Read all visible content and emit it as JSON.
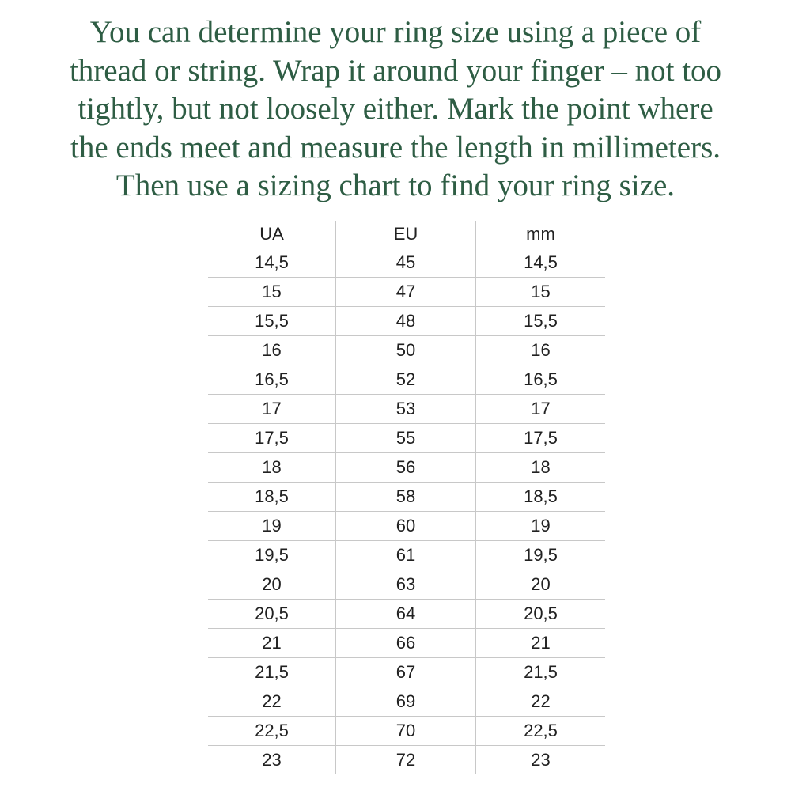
{
  "page": {
    "background_color": "#ffffff",
    "accent_green": "#2e5d44",
    "table_border_color": "#c8c8c8",
    "table_text_color": "#212121"
  },
  "intro": {
    "lines": [
      "You can determine your ring size using a piece of",
      "thread or string. Wrap it around your finger – not too",
      "tightly, but not loosely either. Mark the point where",
      "the ends meet and measure the length in millimeters.",
      "Then use a sizing chart to find your ring size."
    ]
  },
  "size_chart": {
    "columns": [
      "UA",
      "EU",
      "mm"
    ],
    "rows": [
      [
        "14,5",
        "45",
        "14,5"
      ],
      [
        "15",
        "47",
        "15"
      ],
      [
        "15,5",
        "48",
        "15,5"
      ],
      [
        "16",
        "50",
        "16"
      ],
      [
        "16,5",
        "52",
        "16,5"
      ],
      [
        "17",
        "53",
        "17"
      ],
      [
        "17,5",
        "55",
        "17,5"
      ],
      [
        "18",
        "56",
        "18"
      ],
      [
        "18,5",
        "58",
        "18,5"
      ],
      [
        "19",
        "60",
        "19"
      ],
      [
        "19,5",
        "61",
        "19,5"
      ],
      [
        "20",
        "63",
        "20"
      ],
      [
        "20,5",
        "64",
        "20,5"
      ],
      [
        "21",
        "66",
        "21"
      ],
      [
        "21,5",
        "67",
        "21,5"
      ],
      [
        "22",
        "69",
        "22"
      ],
      [
        "22,5",
        "70",
        "22,5"
      ],
      [
        "23",
        "72",
        "23"
      ]
    ]
  }
}
